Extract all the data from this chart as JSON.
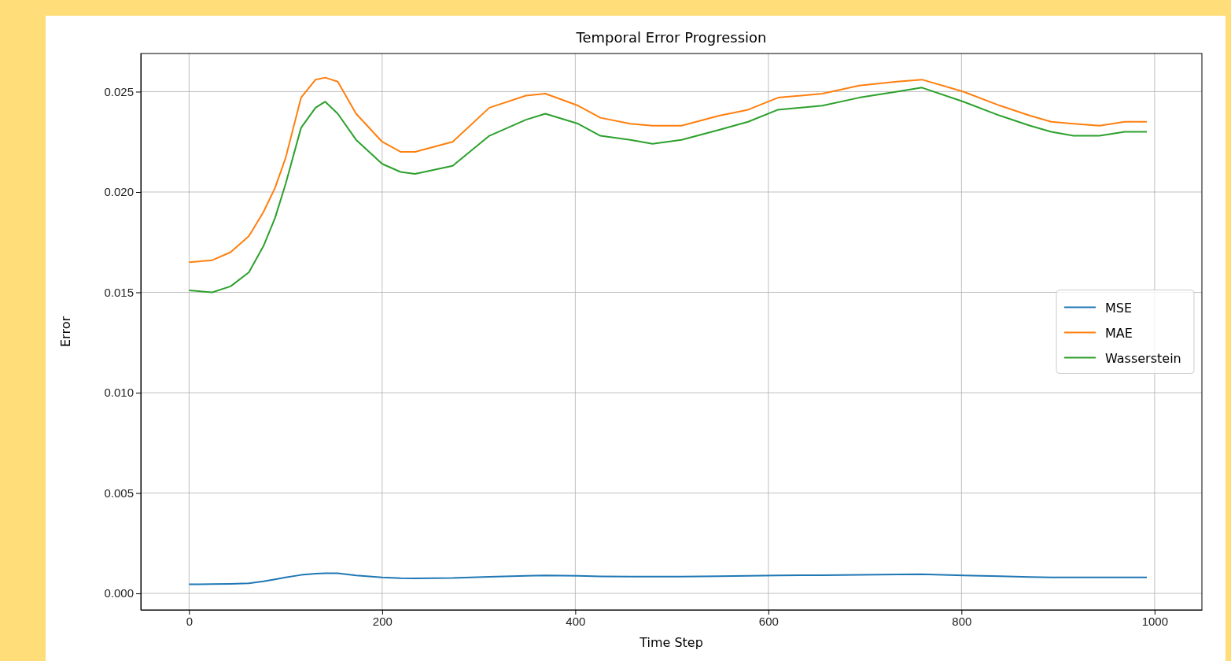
{
  "chart_data": {
    "type": "line",
    "title": "Temporal Error Progression",
    "xlabel": "Time Step",
    "ylabel": "Error",
    "xlim": [
      -50,
      1049
    ],
    "xticks": [
      0,
      200,
      400,
      600,
      800,
      1000
    ],
    "ylim": [
      -0.00082,
      0.0269
    ],
    "yticks": [
      {
        "value": 0,
        "label": "0.000"
      },
      {
        "value": 0.005,
        "label": "0.005"
      },
      {
        "value": 0.01,
        "label": "0.010"
      },
      {
        "value": 0.015,
        "label": "0.015"
      },
      {
        "value": 0.02,
        "label": "0.020"
      },
      {
        "value": 0.025,
        "label": "0.025"
      }
    ],
    "grid": true,
    "legend": "right",
    "line_style": "solid",
    "x": [
      0,
      24,
      43,
      62,
      77,
      89,
      100,
      116,
      131,
      141,
      154,
      173,
      200,
      219,
      234,
      273,
      311,
      349,
      369,
      403,
      426,
      457,
      480,
      510,
      549,
      579,
      610,
      656,
      694,
      733,
      759,
      802,
      840,
      871,
      893,
      916,
      943,
      969,
      992
    ],
    "series": [
      {
        "name": "MSE",
        "color": "#1f77b4",
        "values": [
          0.00045,
          0.00046,
          0.00047,
          0.0005,
          0.0006,
          0.0007,
          0.0008,
          0.00092,
          0.00098,
          0.001,
          0.001,
          0.0009,
          0.0008,
          0.00076,
          0.00075,
          0.00077,
          0.00083,
          0.00088,
          0.0009,
          0.00088,
          0.00085,
          0.00084,
          0.00084,
          0.00084,
          0.00086,
          0.00088,
          0.0009,
          0.00091,
          0.00092,
          0.00094,
          0.00095,
          0.0009,
          0.00086,
          0.00082,
          0.0008,
          0.0008,
          0.0008,
          0.0008,
          0.0008
        ]
      },
      {
        "name": "MAE",
        "color": "#ff7f0e",
        "values": [
          0.0165,
          0.0166,
          0.017,
          0.0178,
          0.019,
          0.0202,
          0.0217,
          0.0247,
          0.0256,
          0.0257,
          0.0255,
          0.0239,
          0.0225,
          0.022,
          0.022,
          0.0225,
          0.0242,
          0.0248,
          0.0249,
          0.0243,
          0.0237,
          0.0234,
          0.0233,
          0.0233,
          0.0238,
          0.0241,
          0.0247,
          0.0249,
          0.0253,
          0.0255,
          0.0256,
          0.025,
          0.0243,
          0.0238,
          0.0235,
          0.0234,
          0.0233,
          0.0235,
          0.0235
        ]
      },
      {
        "name": "Wasserstein",
        "color": "#2ca02c",
        "values": [
          0.0151,
          0.015,
          0.0153,
          0.016,
          0.0173,
          0.0187,
          0.0204,
          0.0232,
          0.0242,
          0.0245,
          0.0239,
          0.0226,
          0.0214,
          0.021,
          0.0209,
          0.0213,
          0.0228,
          0.0236,
          0.0239,
          0.0234,
          0.0228,
          0.0226,
          0.0224,
          0.0226,
          0.0231,
          0.0235,
          0.0241,
          0.0243,
          0.0247,
          0.025,
          0.0252,
          0.0245,
          0.0238,
          0.0233,
          0.023,
          0.0228,
          0.0228,
          0.023,
          0.023
        ]
      }
    ]
  }
}
